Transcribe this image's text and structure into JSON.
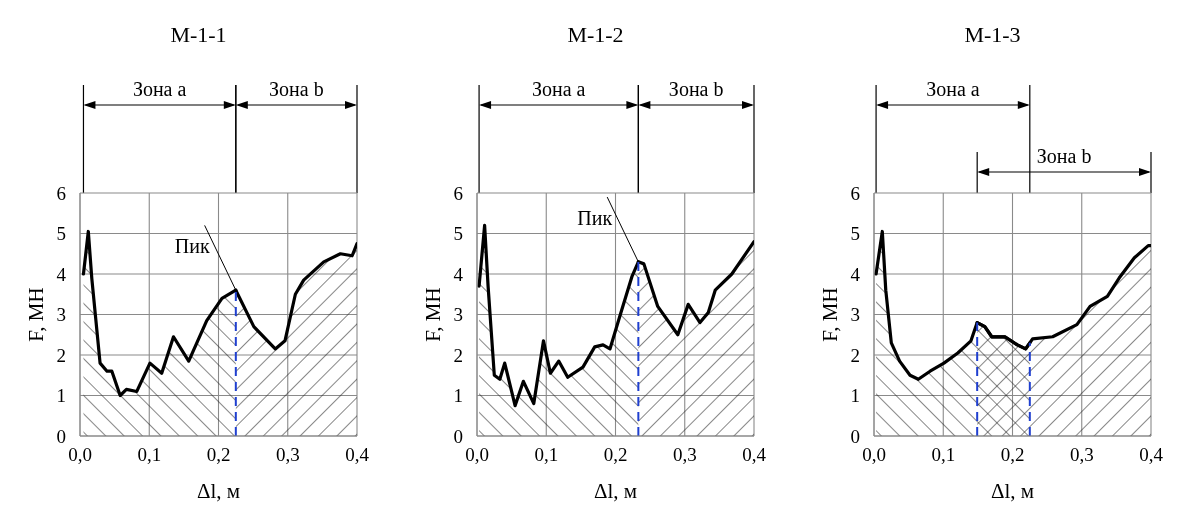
{
  "chart_data": [
    {
      "type": "area",
      "title": "М-1-1",
      "xlabel": "Δl, м",
      "ylabel": "F, МН",
      "xlim": [
        0,
        0.4
      ],
      "xticks": [
        {
          "value": 0,
          "label": "0,0"
        },
        {
          "value": 0.1,
          "label": "0,1"
        },
        {
          "value": 0.2,
          "label": "0,2"
        },
        {
          "value": 0.3,
          "label": "0,3"
        },
        {
          "value": 0.4,
          "label": "0,4"
        }
      ],
      "ylim": [
        0,
        6
      ],
      "yticks": [
        0,
        1,
        2,
        3,
        4,
        5,
        6
      ],
      "grid": true,
      "series": [
        {
          "color": "#000000",
          "x": [
            0.005,
            0.012,
            0.017,
            0.029,
            0.039,
            0.046,
            0.058,
            0.067,
            0.082,
            0.101,
            0.118,
            0.135,
            0.157,
            0.183,
            0.205,
            0.225
          ],
          "values": [
            4.0,
            5.05,
            3.9,
            1.8,
            1.6,
            1.6,
            1.0,
            1.15,
            1.1,
            1.8,
            1.55,
            2.45,
            1.85,
            2.85,
            3.4,
            3.6
          ]
        },
        {
          "color": "#000000",
          "x": [
            0.225,
            0.251,
            0.282,
            0.296,
            0.311,
            0.323,
            0.352,
            0.376,
            0.393,
            0.4
          ],
          "values": [
            3.6,
            2.7,
            2.15,
            2.35,
            3.5,
            3.85,
            4.3,
            4.5,
            4.45,
            4.75
          ]
        }
      ],
      "ref_lines": [
        {
          "axis": "x",
          "value": 0.225,
          "color": "#1f3fd0",
          "line_style": "dashed"
        }
      ],
      "annotations": [
        "Зона a",
        "Зона b",
        {
          "text": "Пик",
          "x": 0.225,
          "y": 3.6
        }
      ]
    },
    {
      "type": "area",
      "title": "М-1-2",
      "xlabel": "Δl, м",
      "ylabel": "F, МН",
      "xlim": [
        0,
        0.4
      ],
      "xticks": [
        {
          "value": 0,
          "label": "0,0"
        },
        {
          "value": 0.1,
          "label": "0,1"
        },
        {
          "value": 0.2,
          "label": "0,2"
        },
        {
          "value": 0.3,
          "label": "0,3"
        },
        {
          "value": 0.4,
          "label": "0,4"
        }
      ],
      "ylim": [
        0,
        6
      ],
      "yticks": [
        0,
        1,
        2,
        3,
        4,
        5,
        6
      ],
      "grid": true,
      "series": [
        {
          "color": "#000000",
          "x": [
            0.003,
            0.011,
            0.016,
            0.025,
            0.033,
            0.04,
            0.055,
            0.067,
            0.082,
            0.096,
            0.106,
            0.118,
            0.131,
            0.153,
            0.17,
            0.182,
            0.192,
            0.207,
            0.224,
            0.233
          ],
          "values": [
            3.7,
            5.2,
            3.7,
            1.5,
            1.4,
            1.8,
            0.75,
            1.35,
            0.8,
            2.35,
            1.55,
            1.85,
            1.45,
            1.7,
            2.2,
            2.25,
            2.15,
            3.0,
            3.95,
            4.3
          ]
        },
        {
          "color": "#000000",
          "x": [
            0.233,
            0.241,
            0.261,
            0.29,
            0.305,
            0.322,
            0.334,
            0.344,
            0.368,
            0.4
          ],
          "values": [
            4.3,
            4.25,
            3.2,
            2.5,
            3.25,
            2.8,
            3.05,
            3.6,
            4.0,
            4.8
          ]
        }
      ],
      "ref_lines": [
        {
          "axis": "x",
          "value": 0.233,
          "color": "#1f3fd0",
          "line_style": "dashed"
        }
      ],
      "annotations": [
        "Зона a",
        "Зона b",
        {
          "text": "Пик",
          "x": 0.233,
          "y": 4.3
        }
      ]
    },
    {
      "type": "area",
      "title": "М-1-3",
      "xlabel": "Δl, м",
      "ylabel": "F, МН",
      "xlim": [
        0,
        0.4
      ],
      "xticks": [
        {
          "value": 0,
          "label": "0,0"
        },
        {
          "value": 0.1,
          "label": "0,1"
        },
        {
          "value": 0.2,
          "label": "0,2"
        },
        {
          "value": 0.3,
          "label": "0,3"
        },
        {
          "value": 0.4,
          "label": "0,4"
        }
      ],
      "ylim": [
        0,
        6
      ],
      "yticks": [
        0,
        1,
        2,
        3,
        4,
        5,
        6
      ],
      "grid": true,
      "series": [
        {
          "color": "#000000",
          "x": [
            0.003,
            0.012,
            0.017,
            0.025,
            0.037,
            0.052,
            0.064,
            0.081,
            0.101,
            0.121,
            0.14,
            0.149,
            0.16,
            0.17,
            0.189,
            0.207,
            0.219,
            0.225
          ],
          "values": [
            4.0,
            5.05,
            3.6,
            2.3,
            1.85,
            1.5,
            1.4,
            1.6,
            1.8,
            2.05,
            2.35,
            2.8,
            2.7,
            2.45,
            2.45,
            2.25,
            2.15,
            2.3
          ]
        },
        {
          "color": "#000000",
          "x": [
            0.149,
            0.16,
            0.17,
            0.189,
            0.207,
            0.219,
            0.225,
            0.229,
            0.258,
            0.293,
            0.312,
            0.337,
            0.354,
            0.376,
            0.396,
            0.4
          ],
          "values": [
            2.8,
            2.7,
            2.45,
            2.45,
            2.25,
            2.15,
            2.3,
            2.4,
            2.45,
            2.75,
            3.2,
            3.45,
            3.9,
            4.4,
            4.7,
            4.7
          ]
        }
      ],
      "ref_lines": [
        {
          "axis": "x",
          "value": 0.149,
          "color": "#1f3fd0",
          "line_style": "dashed"
        },
        {
          "axis": "x",
          "value": 0.225,
          "color": "#1f3fd0",
          "line_style": "dashed"
        }
      ],
      "annotations": [
        "Зона a",
        "Зона b"
      ]
    }
  ]
}
